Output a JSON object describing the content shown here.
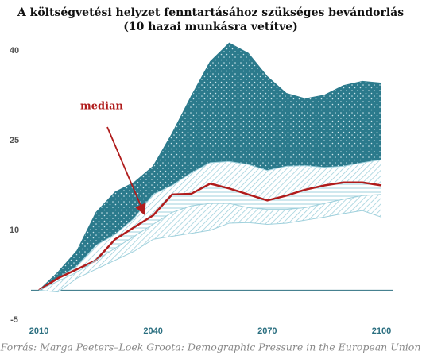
{
  "chart_data": {
    "type": "band",
    "title": "A költségvetési helyzet fenntartásához szükséges bevándorlás",
    "subtitle": "(10 hazai munkásra vetítve)",
    "source": "Forrás: Marga Peeters–Loek Groota: Demographic Pressure in the European Union",
    "annotation": "median",
    "x": [
      2010,
      2015,
      2020,
      2025,
      2030,
      2035,
      2040,
      2045,
      2050,
      2055,
      2060,
      2065,
      2070,
      2075,
      2080,
      2085,
      2090,
      2095,
      2100
    ],
    "series": [
      {
        "color": "#2b7a8c",
        "values": [
          0,
          3,
          6.6,
          13,
          16.4,
          18,
          20.7,
          26.2,
          32.4,
          38.2,
          41.3,
          39.6,
          35.7,
          32.9,
          32,
          32.6,
          34.2,
          34.9,
          34.6
        ]
      },
      {
        "color": "#9fd0dc",
        "values": [
          0,
          2,
          4,
          7.5,
          9.3,
          12,
          16,
          17.5,
          19.6,
          21.3,
          21.5,
          21,
          20,
          20.7,
          20.8,
          20.5,
          20.7,
          21.3,
          21.8
        ]
      },
      {
        "color": "#b01c1c",
        "values": [
          0,
          2,
          3.5,
          5,
          8.5,
          10.5,
          12.5,
          16,
          16.1,
          17.8,
          17,
          16,
          15,
          15.8,
          16.8,
          17.5,
          18,
          18,
          17.5
        ]
      },
      {
        "color": "#9fd0dc",
        "values": [
          0,
          1.5,
          3,
          5,
          7,
          9,
          11,
          13,
          14.1,
          14.5,
          14.5,
          13.8,
          13.5,
          13.5,
          13.8,
          14.5,
          15.2,
          15.8,
          16
        ]
      },
      {
        "color": "#9fd0dc",
        "values": [
          0,
          -0.3,
          2,
          3.5,
          5,
          6.5,
          8.5,
          9,
          9.5,
          10,
          11.2,
          11.3,
          11,
          11.2,
          11.7,
          12.2,
          12.8,
          13.3,
          12.2
        ]
      }
    ],
    "xlim": [
      2010,
      2100
    ],
    "xticks": [
      2010,
      2040,
      2070,
      2100
    ],
    "ylim": [
      -5,
      40
    ],
    "yticks": [
      -5,
      10,
      25,
      40
    ]
  }
}
